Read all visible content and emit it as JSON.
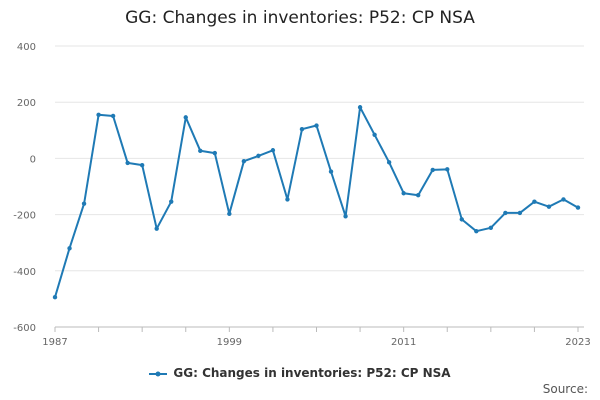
{
  "chart_data": {
    "type": "line",
    "title": "GG: Changes in inventories: P52: CP NSA",
    "xlabel": "",
    "ylabel": "",
    "ylim": [
      -600,
      400
    ],
    "yticks": [
      400,
      200,
      0,
      -200,
      -400,
      -600
    ],
    "xlim": [
      1987,
      2023
    ],
    "xticks": [
      1987,
      1999,
      2011,
      2023
    ],
    "grid": true,
    "legend_position": "bottom",
    "series": [
      {
        "name": "GG: Changes in inventories: P52: CP NSA",
        "color": "#1f7ab5",
        "x": [
          1987,
          1988,
          1989,
          1990,
          1991,
          1992,
          1993,
          1994,
          1995,
          1996,
          1997,
          1998,
          1999,
          2000,
          2001,
          2002,
          2003,
          2004,
          2005,
          2006,
          2007,
          2008,
          2009,
          2010,
          2011,
          2012,
          2013,
          2014,
          2015,
          2016,
          2017,
          2018,
          2019,
          2020,
          2021,
          2022,
          2023
        ],
        "values": [
          -494,
          -320,
          -161,
          155,
          151,
          -16,
          -24,
          -250,
          -154,
          146,
          27,
          19,
          -197,
          -10,
          9,
          29,
          -146,
          104,
          117,
          -47,
          -206,
          182,
          84,
          -14,
          -124,
          -131,
          -41,
          -39,
          -217,
          -259,
          -247,
          -194,
          -194,
          -154,
          -172,
          -146,
          -175
        ]
      }
    ]
  },
  "source_label": "Source:"
}
